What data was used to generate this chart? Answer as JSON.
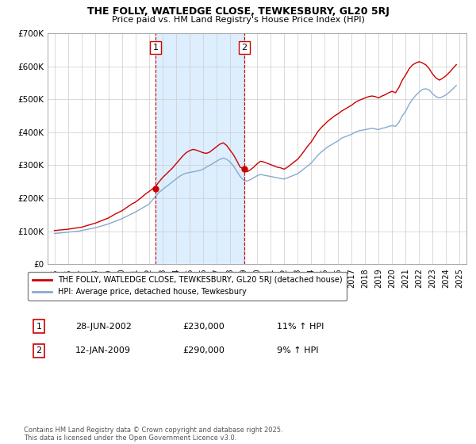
{
  "title": "THE FOLLY, WATLEDGE CLOSE, TEWKESBURY, GL20 5RJ",
  "subtitle": "Price paid vs. HM Land Registry's House Price Index (HPI)",
  "legend_label_1": "THE FOLLY, WATLEDGE CLOSE, TEWKESBURY, GL20 5RJ (detached house)",
  "legend_label_2": "HPI: Average price, detached house, Tewkesbury",
  "annotation_label": "Contains HM Land Registry data © Crown copyright and database right 2025.\nThis data is licensed under the Open Government Licence v3.0.",
  "marker1_date": 2002.49,
  "marker1_date_str": "28-JUN-2002",
  "marker1_price": "£230,000",
  "marker1_hpi": "11% ↑ HPI",
  "marker1_value": 230000,
  "marker2_date": 2009.04,
  "marker2_date_str": "12-JAN-2009",
  "marker2_price": "£290,000",
  "marker2_hpi": "9% ↑ HPI",
  "marker2_value": 290000,
  "shade_start": 2002.49,
  "shade_end": 2009.04,
  "color_red": "#cc0000",
  "color_blue": "#88aacc",
  "color_shade": "#ddeeff",
  "color_grid": "#cccccc",
  "ylim_min": 0,
  "ylim_max": 700000,
  "xlim_min": 1994.5,
  "xlim_max": 2025.5,
  "yticks": [
    0,
    100000,
    200000,
    300000,
    400000,
    500000,
    600000,
    700000
  ],
  "ytick_labels": [
    "£0",
    "£100K",
    "£200K",
    "£300K",
    "£400K",
    "£500K",
    "£600K",
    "£700K"
  ],
  "xticks": [
    1995,
    1996,
    1997,
    1998,
    1999,
    2000,
    2001,
    2002,
    2003,
    2004,
    2005,
    2006,
    2007,
    2008,
    2009,
    2010,
    2011,
    2012,
    2013,
    2014,
    2015,
    2016,
    2017,
    2018,
    2019,
    2020,
    2021,
    2022,
    2023,
    2024,
    2025
  ],
  "hpi_data": [
    [
      1995.0,
      93000
    ],
    [
      1995.25,
      94000
    ],
    [
      1995.5,
      95000
    ],
    [
      1995.75,
      96000
    ],
    [
      1996.0,
      97000
    ],
    [
      1996.25,
      98000
    ],
    [
      1996.5,
      99000
    ],
    [
      1996.75,
      100000
    ],
    [
      1997.0,
      102000
    ],
    [
      1997.25,
      104000
    ],
    [
      1997.5,
      106000
    ],
    [
      1997.75,
      108000
    ],
    [
      1998.0,
      110000
    ],
    [
      1998.25,
      113000
    ],
    [
      1998.5,
      116000
    ],
    [
      1998.75,
      119000
    ],
    [
      1999.0,
      122000
    ],
    [
      1999.25,
      126000
    ],
    [
      1999.5,
      130000
    ],
    [
      1999.75,
      134000
    ],
    [
      2000.0,
      138000
    ],
    [
      2000.25,
      143000
    ],
    [
      2000.5,
      148000
    ],
    [
      2000.75,
      153000
    ],
    [
      2001.0,
      158000
    ],
    [
      2001.25,
      164000
    ],
    [
      2001.5,
      170000
    ],
    [
      2001.75,
      176000
    ],
    [
      2002.0,
      182000
    ],
    [
      2002.25,
      194000
    ],
    [
      2002.5,
      206000
    ],
    [
      2002.75,
      218000
    ],
    [
      2003.0,
      226000
    ],
    [
      2003.25,
      234000
    ],
    [
      2003.5,
      242000
    ],
    [
      2003.75,
      250000
    ],
    [
      2004.0,
      258000
    ],
    [
      2004.25,
      266000
    ],
    [
      2004.5,
      272000
    ],
    [
      2004.75,
      276000
    ],
    [
      2005.0,
      278000
    ],
    [
      2005.25,
      280000
    ],
    [
      2005.5,
      282000
    ],
    [
      2005.75,
      284000
    ],
    [
      2006.0,
      288000
    ],
    [
      2006.25,
      294000
    ],
    [
      2006.5,
      300000
    ],
    [
      2006.75,
      306000
    ],
    [
      2007.0,
      312000
    ],
    [
      2007.25,
      318000
    ],
    [
      2007.5,
      322000
    ],
    [
      2007.75,
      318000
    ],
    [
      2008.0,
      310000
    ],
    [
      2008.25,
      298000
    ],
    [
      2008.5,
      282000
    ],
    [
      2008.75,
      266000
    ],
    [
      2009.0,
      255000
    ],
    [
      2009.25,
      252000
    ],
    [
      2009.5,
      256000
    ],
    [
      2009.75,
      262000
    ],
    [
      2010.0,
      268000
    ],
    [
      2010.25,
      272000
    ],
    [
      2010.5,
      270000
    ],
    [
      2010.75,
      268000
    ],
    [
      2011.0,
      266000
    ],
    [
      2011.25,
      264000
    ],
    [
      2011.5,
      262000
    ],
    [
      2011.75,
      260000
    ],
    [
      2012.0,
      258000
    ],
    [
      2012.25,
      262000
    ],
    [
      2012.5,
      266000
    ],
    [
      2012.75,
      270000
    ],
    [
      2013.0,
      274000
    ],
    [
      2013.25,
      282000
    ],
    [
      2013.5,
      290000
    ],
    [
      2013.75,
      298000
    ],
    [
      2014.0,
      306000
    ],
    [
      2014.25,
      318000
    ],
    [
      2014.5,
      330000
    ],
    [
      2014.75,
      340000
    ],
    [
      2015.0,
      348000
    ],
    [
      2015.25,
      356000
    ],
    [
      2015.5,
      362000
    ],
    [
      2015.75,
      368000
    ],
    [
      2016.0,
      374000
    ],
    [
      2016.25,
      382000
    ],
    [
      2016.5,
      386000
    ],
    [
      2016.75,
      390000
    ],
    [
      2017.0,
      394000
    ],
    [
      2017.25,
      400000
    ],
    [
      2017.5,
      404000
    ],
    [
      2017.75,
      406000
    ],
    [
      2018.0,
      408000
    ],
    [
      2018.25,
      410000
    ],
    [
      2018.5,
      412000
    ],
    [
      2018.75,
      410000
    ],
    [
      2019.0,
      408000
    ],
    [
      2019.25,
      412000
    ],
    [
      2019.5,
      414000
    ],
    [
      2019.75,
      418000
    ],
    [
      2020.0,
      420000
    ],
    [
      2020.25,
      418000
    ],
    [
      2020.5,
      430000
    ],
    [
      2020.75,
      450000
    ],
    [
      2021.0,
      464000
    ],
    [
      2021.25,
      484000
    ],
    [
      2021.5,
      500000
    ],
    [
      2021.75,
      512000
    ],
    [
      2022.0,
      522000
    ],
    [
      2022.25,
      530000
    ],
    [
      2022.5,
      532000
    ],
    [
      2022.75,
      528000
    ],
    [
      2023.0,
      516000
    ],
    [
      2023.25,
      508000
    ],
    [
      2023.5,
      504000
    ],
    [
      2023.75,
      508000
    ],
    [
      2024.0,
      514000
    ],
    [
      2024.25,
      522000
    ],
    [
      2024.5,
      532000
    ],
    [
      2024.75,
      542000
    ]
  ],
  "price_data": [
    [
      1995.0,
      102000
    ],
    [
      1995.25,
      103000
    ],
    [
      1995.5,
      104000
    ],
    [
      1995.75,
      105000
    ],
    [
      1996.0,
      106000
    ],
    [
      1996.25,
      107500
    ],
    [
      1996.5,
      109000
    ],
    [
      1996.75,
      110500
    ],
    [
      1997.0,
      112000
    ],
    [
      1997.25,
      115000
    ],
    [
      1997.5,
      118000
    ],
    [
      1997.75,
      121000
    ],
    [
      1998.0,
      124000
    ],
    [
      1998.25,
      128000
    ],
    [
      1998.5,
      132000
    ],
    [
      1998.75,
      136000
    ],
    [
      1999.0,
      140000
    ],
    [
      1999.25,
      146000
    ],
    [
      1999.5,
      152000
    ],
    [
      1999.75,
      157000
    ],
    [
      2000.0,
      162000
    ],
    [
      2000.25,
      169000
    ],
    [
      2000.5,
      176000
    ],
    [
      2000.75,
      183000
    ],
    [
      2001.0,
      188000
    ],
    [
      2001.25,
      196000
    ],
    [
      2001.5,
      204000
    ],
    [
      2001.75,
      213000
    ],
    [
      2002.0,
      220000
    ],
    [
      2002.25,
      228000
    ],
    [
      2002.5,
      236000
    ],
    [
      2002.75,
      250000
    ],
    [
      2003.0,
      262000
    ],
    [
      2003.25,
      272000
    ],
    [
      2003.5,
      282000
    ],
    [
      2003.75,
      292000
    ],
    [
      2004.0,
      304000
    ],
    [
      2004.25,
      316000
    ],
    [
      2004.5,
      328000
    ],
    [
      2004.75,
      338000
    ],
    [
      2005.0,
      344000
    ],
    [
      2005.25,
      348000
    ],
    [
      2005.5,
      346000
    ],
    [
      2005.75,
      342000
    ],
    [
      2006.0,
      338000
    ],
    [
      2006.25,
      336000
    ],
    [
      2006.5,
      340000
    ],
    [
      2006.75,
      348000
    ],
    [
      2007.0,
      356000
    ],
    [
      2007.25,
      364000
    ],
    [
      2007.5,
      368000
    ],
    [
      2007.75,
      360000
    ],
    [
      2008.0,
      346000
    ],
    [
      2008.25,
      332000
    ],
    [
      2008.5,
      314000
    ],
    [
      2008.75,
      294000
    ],
    [
      2009.0,
      290000
    ],
    [
      2009.25,
      280000
    ],
    [
      2009.5,
      286000
    ],
    [
      2009.75,
      294000
    ],
    [
      2010.0,
      304000
    ],
    [
      2010.25,
      312000
    ],
    [
      2010.5,
      310000
    ],
    [
      2010.75,
      306000
    ],
    [
      2011.0,
      302000
    ],
    [
      2011.25,
      298000
    ],
    [
      2011.5,
      294000
    ],
    [
      2011.75,
      292000
    ],
    [
      2012.0,
      288000
    ],
    [
      2012.25,
      294000
    ],
    [
      2012.5,
      302000
    ],
    [
      2012.75,
      310000
    ],
    [
      2013.0,
      318000
    ],
    [
      2013.25,
      330000
    ],
    [
      2013.5,
      344000
    ],
    [
      2013.75,
      358000
    ],
    [
      2014.0,
      370000
    ],
    [
      2014.25,
      386000
    ],
    [
      2014.5,
      402000
    ],
    [
      2014.75,
      414000
    ],
    [
      2015.0,
      424000
    ],
    [
      2015.25,
      434000
    ],
    [
      2015.5,
      442000
    ],
    [
      2015.75,
      450000
    ],
    [
      2016.0,
      456000
    ],
    [
      2016.25,
      464000
    ],
    [
      2016.5,
      470000
    ],
    [
      2016.75,
      476000
    ],
    [
      2017.0,
      482000
    ],
    [
      2017.25,
      490000
    ],
    [
      2017.5,
      496000
    ],
    [
      2017.75,
      500000
    ],
    [
      2018.0,
      504000
    ],
    [
      2018.25,
      508000
    ],
    [
      2018.5,
      510000
    ],
    [
      2018.75,
      508000
    ],
    [
      2019.0,
      504000
    ],
    [
      2019.25,
      510000
    ],
    [
      2019.5,
      514000
    ],
    [
      2019.75,
      520000
    ],
    [
      2020.0,
      524000
    ],
    [
      2020.25,
      520000
    ],
    [
      2020.5,
      536000
    ],
    [
      2020.75,
      558000
    ],
    [
      2021.0,
      574000
    ],
    [
      2021.25,
      592000
    ],
    [
      2021.5,
      604000
    ],
    [
      2021.75,
      610000
    ],
    [
      2022.0,
      614000
    ],
    [
      2022.25,
      610000
    ],
    [
      2022.5,
      604000
    ],
    [
      2022.75,
      592000
    ],
    [
      2023.0,
      576000
    ],
    [
      2023.25,
      564000
    ],
    [
      2023.5,
      558000
    ],
    [
      2023.75,
      564000
    ],
    [
      2024.0,
      572000
    ],
    [
      2024.25,
      582000
    ],
    [
      2024.5,
      594000
    ],
    [
      2024.75,
      605000
    ]
  ]
}
